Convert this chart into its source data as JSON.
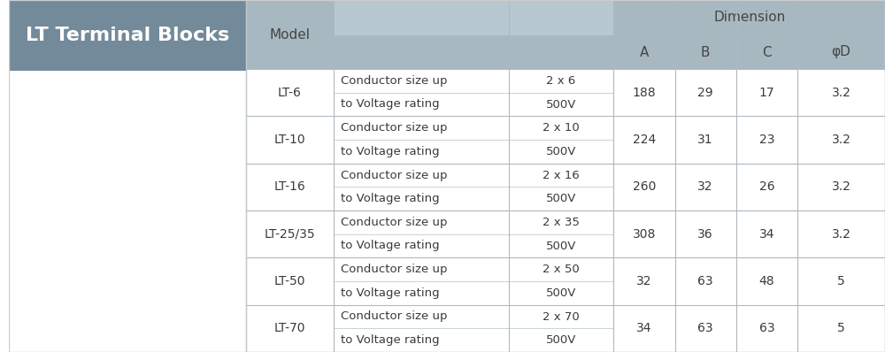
{
  "title": "LT Terminal Blocks",
  "title_bg": "#738a9a",
  "title_color": "white",
  "left_panel_bg": "#ffffff",
  "header_bg": "#a8b8c0",
  "mid_header_bg": "#b8c8d0",
  "dim_header": "Dimension",
  "rows": [
    {
      "model": "LT-6",
      "param1": "Conductor size up",
      "value1": "2 x 6",
      "param2": "to Voltage rating",
      "value2": "500V",
      "A": "188",
      "B": "29",
      "C": "17",
      "phiD": "3.2"
    },
    {
      "model": "LT-10",
      "param1": "Conductor size up",
      "value1": "2 x 10",
      "param2": "to Voltage rating",
      "value2": "500V",
      "A": "224",
      "B": "31",
      "C": "23",
      "phiD": "3.2"
    },
    {
      "model": "LT-16",
      "param1": "Conductor size up",
      "value1": "2 x 16",
      "param2": "to Voltage rating",
      "value2": "500V",
      "A": "260",
      "B": "32",
      "C": "26",
      "phiD": "3.2"
    },
    {
      "model": "LT-25/35",
      "param1": "Conductor size up",
      "value1": "2 x 35",
      "param2": "to Voltage rating",
      "value2": "500V",
      "A": "308",
      "B": "36",
      "C": "34",
      "phiD": "3.2"
    },
    {
      "model": "LT-50",
      "param1": "Conductor size up",
      "value1": "2 x 50",
      "param2": "to Voltage rating",
      "value2": "500V",
      "A": "32",
      "B": "63",
      "C": "48",
      "phiD": "5"
    },
    {
      "model": "LT-70",
      "param1": "Conductor size up",
      "value1": "2 x 70",
      "param2": "to Voltage rating",
      "value2": "500V",
      "A": "34",
      "B": "63",
      "C": "63",
      "phiD": "5"
    }
  ],
  "bg_color": "#ffffff",
  "table_bg": "#ffffff",
  "line_color": "#b0b8c0",
  "text_color": "#3a3a3a",
  "header_text_color": "#444444",
  "sub_cols": [
    "A",
    "B",
    "C",
    "φD"
  ]
}
